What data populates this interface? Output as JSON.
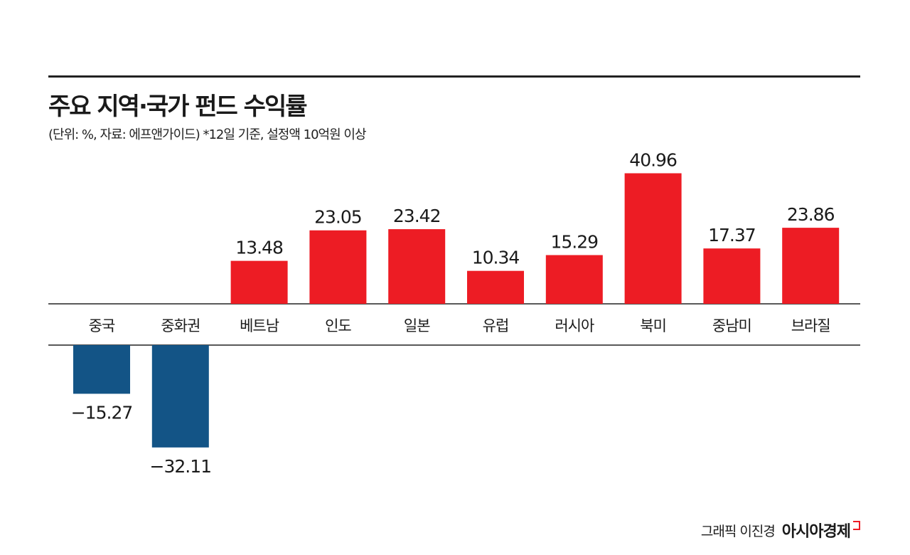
{
  "chart_data": {
    "type": "bar",
    "title": "주요 지역·국가 펀드 수익률",
    "subtitle": "(단위: %, 자료: 에프앤가이드)  *12일 기준, 설정액 10억원 이상",
    "categories": [
      "중국",
      "중화권",
      "베트남",
      "인도",
      "일본",
      "유럽",
      "러시아",
      "북미",
      "중남미",
      "브라질"
    ],
    "values": [
      -15.27,
      -32.11,
      13.48,
      23.05,
      23.42,
      10.34,
      15.29,
      40.96,
      17.37,
      23.86
    ],
    "value_labels": [
      "-15.27",
      "-32.11",
      "13.48",
      "23.05",
      "23.42",
      "10.34",
      "15.29",
      "40.96",
      "17.37",
      "23.86"
    ],
    "colors": {
      "positive": "#ed1c24",
      "negative": "#135486"
    },
    "grid": false,
    "legend": "none"
  },
  "credit": {
    "text": "그래픽 이진경",
    "brand": "아시아경제"
  }
}
